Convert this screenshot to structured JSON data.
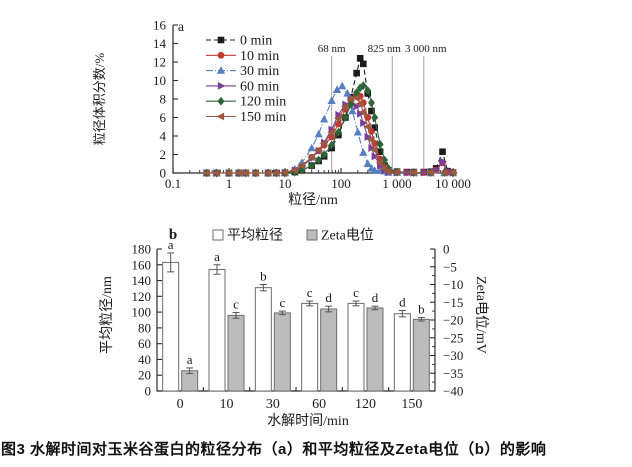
{
  "caption": "图3 水解时间对玉米谷蛋白的粒径分布（a）和平均粒径及Zeta电位（b）的影响",
  "colors": {
    "axis": "#2b2b2b",
    "reference_line": "#b3b3b3",
    "bar_white_fill": "#ffffff",
    "bar_gray_fill": "#bcbcbc",
    "bar_stroke": "#6e6e6e"
  },
  "chart_data": [
    {
      "type": "line",
      "panel_label": "a",
      "xlabel": "粒径/nm",
      "ylabel": "粒径体积分数/%",
      "x_scale": "log",
      "xlim": [
        0.1,
        10000
      ],
      "ylim": [
        0,
        16
      ],
      "x_ticks": [
        "0.1",
        "1",
        "10",
        "100",
        "1 000",
        "10 000"
      ],
      "x_tick_values": [
        0.1,
        1,
        10,
        100,
        1000,
        10000
      ],
      "y_ticks": [
        0,
        2,
        4,
        6,
        8,
        10,
        12,
        14,
        16
      ],
      "grid": false,
      "legend_position": "upper-left-inside",
      "reference_lines": [
        {
          "x": 68,
          "label": "68 nm"
        },
        {
          "x": 825,
          "label": "825 nm"
        },
        {
          "x": 3000,
          "label": "3 000 nm"
        }
      ],
      "series": [
        {
          "name": "0 min",
          "color": "#1c1c1c",
          "marker": "square",
          "dash": "5,3",
          "x": [
            0.4,
            0.6,
            1,
            1.5,
            2,
            3,
            5,
            7,
            10,
            15,
            20,
            30,
            40,
            50,
            68,
            90,
            120,
            150,
            190,
            220,
            250,
            300,
            350,
            400,
            500,
            600,
            700,
            1000,
            1500,
            2000,
            3000,
            4000,
            5000,
            6500,
            8000,
            10000
          ],
          "y": [
            0,
            0,
            0,
            0,
            0,
            0,
            0,
            0,
            0,
            0.1,
            0.3,
            0.8,
            1.3,
            1.8,
            2.7,
            4.1,
            6.0,
            8.2,
            10.8,
            12.4,
            11.8,
            8.6,
            6.7,
            4.9,
            2.3,
            0.8,
            0.3,
            0.15,
            0.1,
            0.1,
            0.1,
            0.15,
            0.5,
            2.3,
            0.2,
            0.05
          ]
        },
        {
          "name": "10 min",
          "color": "#c03a33",
          "marker": "circle",
          "dash": "",
          "x": [
            0.4,
            0.6,
            1,
            1.5,
            2,
            3,
            5,
            7,
            10,
            15,
            20,
            30,
            40,
            50,
            68,
            90,
            120,
            150,
            190,
            220,
            250,
            300,
            350,
            400,
            500,
            600,
            700,
            1000,
            1500,
            2000,
            3000,
            4000,
            5000,
            6500,
            8000,
            10000
          ],
          "y": [
            0,
            0,
            0,
            0,
            0,
            0,
            0,
            0,
            0.05,
            0.3,
            0.8,
            1.7,
            2.4,
            3.0,
            3.9,
            5.3,
            6.9,
            8.0,
            8.5,
            8.3,
            7.6,
            6.0,
            4.5,
            3.2,
            1.5,
            0.6,
            0.25,
            0.1,
            0.05,
            0.05,
            0.05,
            0.1,
            0.3,
            1.1,
            0.1,
            0.05
          ]
        },
        {
          "name": "30 min",
          "color": "#557fc0",
          "marker": "triangle-up",
          "dash": "7,2,1,2",
          "x": [
            0.4,
            0.6,
            1,
            1.5,
            2,
            3,
            5,
            7,
            10,
            15,
            20,
            30,
            40,
            50,
            68,
            85,
            105,
            130,
            160,
            200,
            250,
            300,
            350,
            400,
            500,
            600,
            700,
            1000,
            2000,
            4000,
            7000,
            10000
          ],
          "y": [
            0,
            0,
            0,
            0,
            0,
            0,
            0,
            0,
            0.05,
            0.4,
            1.1,
            2.7,
            4.2,
            5.8,
            7.8,
            9.0,
            9.4,
            8.6,
            6.7,
            4.4,
            2.2,
            1.0,
            0.5,
            0.25,
            0.3,
            0.2,
            0.05,
            0.05,
            0,
            0,
            0,
            0
          ]
        },
        {
          "name": "60 min",
          "color": "#7a3d9a",
          "marker": "triangle-right",
          "dash": "",
          "x": [
            0.4,
            0.6,
            1,
            1.5,
            2,
            3,
            5,
            7,
            10,
            15,
            20,
            30,
            40,
            50,
            68,
            90,
            120,
            150,
            190,
            220,
            250,
            300,
            350,
            400,
            500,
            600,
            700,
            1000,
            1500,
            2000,
            3000,
            4000,
            5000,
            6500,
            8000,
            10000
          ],
          "y": [
            0,
            0,
            0,
            0,
            0,
            0,
            0,
            0,
            0.05,
            0.3,
            0.7,
            1.6,
            2.4,
            3.3,
            4.7,
            6.3,
            7.4,
            7.8,
            7.2,
            6.4,
            5.4,
            3.9,
            2.7,
            1.8,
            0.8,
            0.3,
            0.1,
            0.05,
            0.05,
            0.05,
            0.05,
            0.1,
            0.3,
            1.25,
            0.1,
            0.05
          ]
        },
        {
          "name": "120 min",
          "color": "#2d6438",
          "marker": "diamond",
          "dash": "",
          "x": [
            0.4,
            0.6,
            1,
            1.5,
            2,
            3,
            5,
            7,
            10,
            15,
            20,
            30,
            40,
            50,
            68,
            90,
            120,
            150,
            190,
            220,
            250,
            300,
            350,
            400,
            500,
            600,
            700,
            1000,
            2000,
            4000,
            7000,
            10000
          ],
          "y": [
            0,
            0,
            0,
            0,
            0,
            0,
            0,
            0,
            0,
            0.1,
            0.3,
            0.8,
            1.4,
            2.0,
            3.0,
            4.4,
            6.0,
            7.4,
            8.7,
            9.2,
            9.45,
            8.9,
            7.6,
            6.0,
            3.1,
            1.4,
            0.5,
            0.1,
            0.05,
            0.05,
            0.05,
            0
          ]
        },
        {
          "name": "150 min",
          "color": "#9c5a3c",
          "marker": "triangle-left",
          "dash": "",
          "x": [
            0.4,
            0.6,
            1,
            1.5,
            2,
            3,
            5,
            7,
            10,
            15,
            20,
            30,
            40,
            50,
            68,
            90,
            120,
            150,
            190,
            220,
            250,
            300,
            350,
            400,
            500,
            600,
            700,
            1000,
            2000,
            4000,
            7000,
            10000
          ],
          "y": [
            0,
            0,
            0,
            0,
            0,
            0,
            0,
            0,
            0.05,
            0.3,
            0.8,
            1.7,
            2.5,
            3.2,
            4.4,
            5.9,
            7.2,
            8.0,
            8.1,
            7.5,
            6.6,
            5.0,
            3.6,
            2.5,
            1.1,
            0.45,
            0.15,
            0.1,
            0.05,
            0.05,
            0.05,
            0.05
          ]
        }
      ]
    },
    {
      "type": "bar",
      "panel_label": "b",
      "categories": [
        "0",
        "10",
        "30",
        "60",
        "120",
        "150"
      ],
      "xlabel": "水解时间/min",
      "ylabel_left": "平均粒径/nm",
      "ylabel_right": "Zeta电位/mV",
      "ylim_left": [
        0,
        180
      ],
      "ylim_right": [
        0,
        -40
      ],
      "left_ticks": [
        0,
        20,
        40,
        60,
        80,
        100,
        120,
        140,
        160,
        180
      ],
      "right_ticks": [
        "0",
        "−5",
        "−10",
        "−15",
        "−20",
        "−25",
        "−30",
        "−35",
        "−40"
      ],
      "right_tick_values": [
        0,
        -5,
        -10,
        -15,
        -20,
        -25,
        -30,
        -35,
        -40
      ],
      "legend": [
        "平均粒径",
        "Zeta电位"
      ],
      "series": [
        {
          "name": "平均粒径",
          "axis": "left",
          "fill": "#ffffff",
          "values": [
            163,
            154,
            131,
            111,
            111,
            98
          ],
          "errors": [
            12,
            6,
            4,
            3,
            3,
            4
          ],
          "letters": [
            "a",
            "a",
            "b",
            "c",
            "c",
            "d"
          ]
        },
        {
          "name": "Zeta电位",
          "axis": "right",
          "fill": "#bcbcbc",
          "values": [
            -34.3,
            -18.7,
            -18.0,
            -16.9,
            -16.6,
            -19.8
          ],
          "errors": [
            0.8,
            0.8,
            0.5,
            0.8,
            0.5,
            0.5
          ],
          "letters": [
            "a",
            "c",
            "c",
            "d",
            "d",
            "b"
          ]
        }
      ]
    }
  ]
}
